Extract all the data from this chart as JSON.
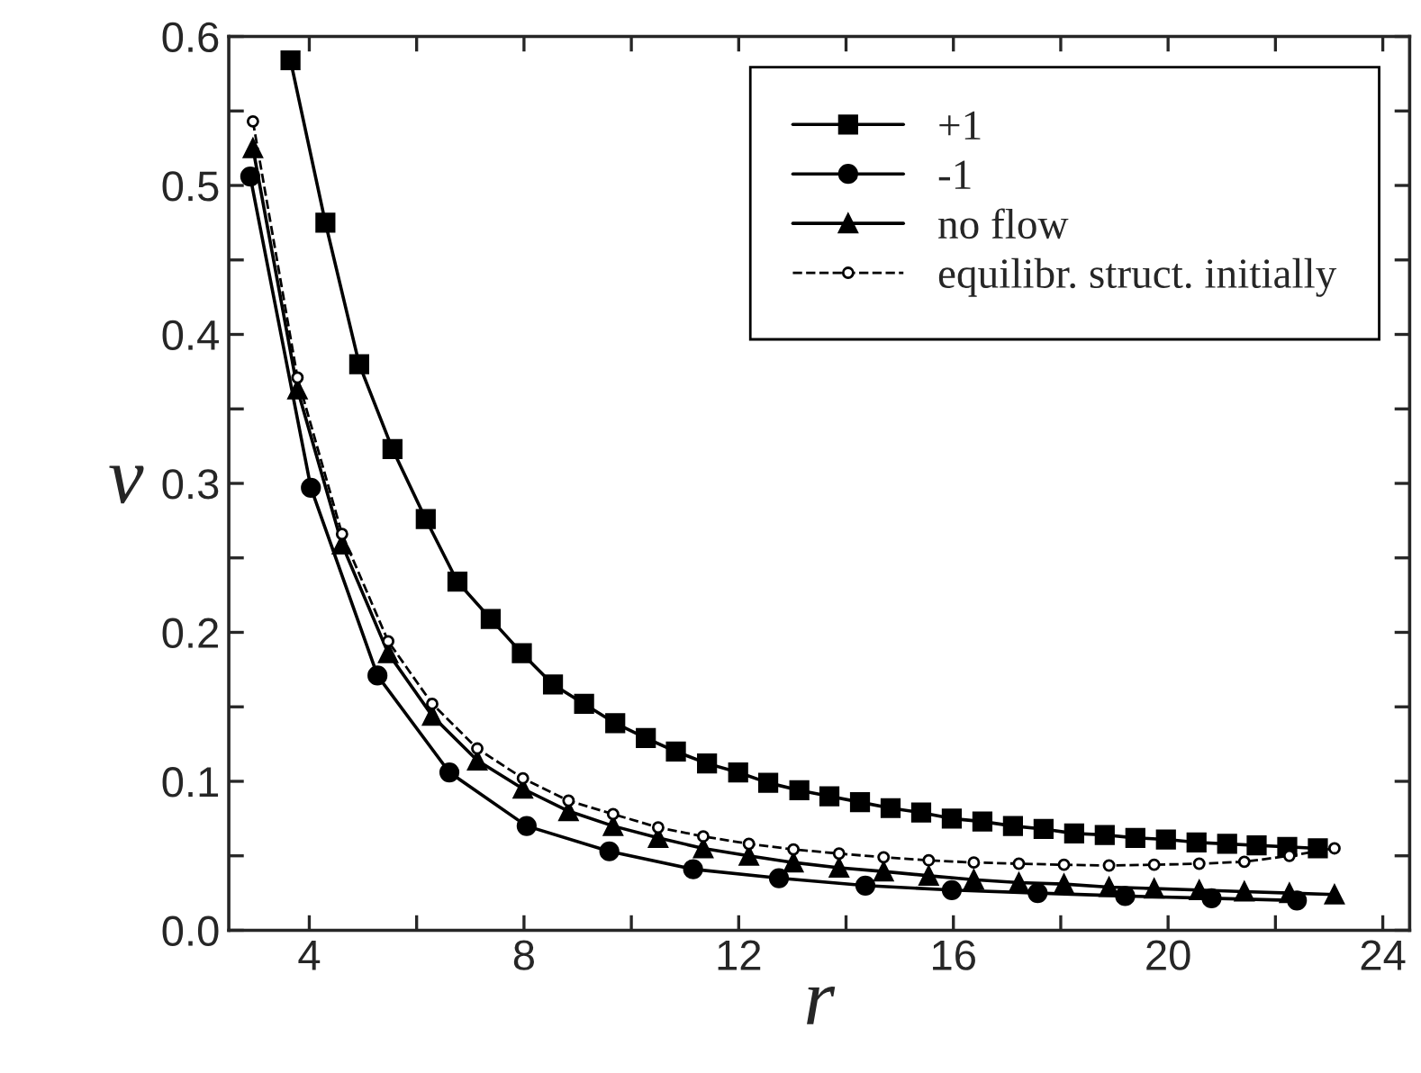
{
  "chart_data": {
    "type": "line",
    "xlabel": "r",
    "ylabel": "v",
    "xlim": [
      2.5,
      24.5
    ],
    "ylim": [
      0,
      0.6
    ],
    "xticks": [
      4,
      {
        "value": 6,
        "label": null
      },
      8,
      {
        "value": 10,
        "label": null
      },
      12,
      {
        "value": 14,
        "label": null
      },
      16,
      {
        "value": 18,
        "label": null
      },
      20,
      {
        "value": 22,
        "label": null
      },
      24
    ],
    "yticks": [
      {
        "value": 0,
        "label": "0.0"
      },
      {
        "value": 0.05,
        "label": null
      },
      0.1,
      {
        "value": 0.15,
        "label": null
      },
      0.2,
      {
        "value": 0.25,
        "label": null
      },
      0.3,
      {
        "value": 0.35,
        "label": null
      },
      0.4,
      {
        "value": 0.45,
        "label": null
      },
      0.5,
      {
        "value": 0.55,
        "label": null
      },
      0.6
    ],
    "grid": false,
    "legend": "top right",
    "series": [
      {
        "name": "+1",
        "color": "#000000",
        "marker": "square",
        "line_style": "solid",
        "x": [
          3.65,
          4.3,
          4.93,
          5.55,
          6.17,
          6.76,
          7.38,
          7.96,
          8.54,
          9.12,
          9.7,
          10.27,
          10.83,
          11.41,
          11.99,
          12.55,
          13.13,
          13.69,
          14.26,
          14.83,
          15.4,
          15.97,
          16.54,
          17.11,
          17.68,
          18.25,
          18.82,
          19.39,
          19.96,
          20.53,
          21.1,
          21.65,
          22.22,
          22.79
        ],
        "values": [
          0.584,
          0.475,
          0.38,
          0.323,
          0.276,
          0.234,
          0.209,
          0.186,
          0.165,
          0.152,
          0.139,
          0.129,
          0.12,
          0.112,
          0.106,
          0.099,
          0.094,
          0.09,
          0.086,
          0.082,
          0.079,
          0.075,
          0.073,
          0.07,
          0.068,
          0.065,
          0.064,
          0.062,
          0.061,
          0.059,
          0.058,
          0.057,
          0.056,
          0.055
        ]
      },
      {
        "name": "-1",
        "color": "#000000",
        "marker": "circle",
        "line_style": "solid",
        "x": [
          2.9,
          4.03,
          5.27,
          6.61,
          8.05,
          9.59,
          11.15,
          12.75,
          14.36,
          15.97,
          17.57,
          19.2,
          20.81,
          22.4
        ],
        "values": [
          0.506,
          0.297,
          0.171,
          0.106,
          0.07,
          0.053,
          0.041,
          0.035,
          0.03,
          0.027,
          0.025,
          0.023,
          0.0215,
          0.02
        ]
      },
      {
        "name": "no flow",
        "color": "#000000",
        "marker": "triangle",
        "line_style": "solid",
        "x": [
          2.95,
          3.78,
          4.61,
          5.47,
          6.29,
          7.13,
          7.98,
          8.83,
          9.66,
          10.5,
          11.34,
          12.19,
          13.02,
          13.87,
          14.7,
          15.54,
          16.38,
          17.22,
          18.06,
          18.9,
          19.74,
          20.58,
          21.42,
          22.26,
          23.1
        ],
        "values": [
          0.525,
          0.363,
          0.259,
          0.186,
          0.144,
          0.114,
          0.095,
          0.08,
          0.07,
          0.062,
          0.055,
          0.05,
          0.0455,
          0.042,
          0.0395,
          0.0366,
          0.034,
          0.032,
          0.031,
          0.029,
          0.028,
          0.027,
          0.026,
          0.025,
          0.024
        ]
      },
      {
        "name": "equilibr. struct. initially",
        "color": "#000000",
        "marker": "circle",
        "line_style": "dashed",
        "x": [
          2.95,
          3.78,
          4.61,
          5.47,
          6.29,
          7.13,
          7.98,
          8.83,
          9.66,
          10.5,
          11.34,
          12.19,
          13.02,
          13.87,
          14.7,
          15.54,
          16.38,
          17.22,
          18.06,
          18.9,
          19.74,
          20.58,
          21.42,
          22.26,
          23.1
        ],
        "values": [
          0.543,
          0.371,
          0.266,
          0.194,
          0.152,
          0.122,
          0.102,
          0.087,
          0.078,
          0.069,
          0.063,
          0.058,
          0.0543,
          0.0515,
          0.049,
          0.047,
          0.0455,
          0.0447,
          0.044,
          0.0435,
          0.044,
          0.0447,
          0.046,
          0.05,
          0.055
        ]
      }
    ]
  }
}
